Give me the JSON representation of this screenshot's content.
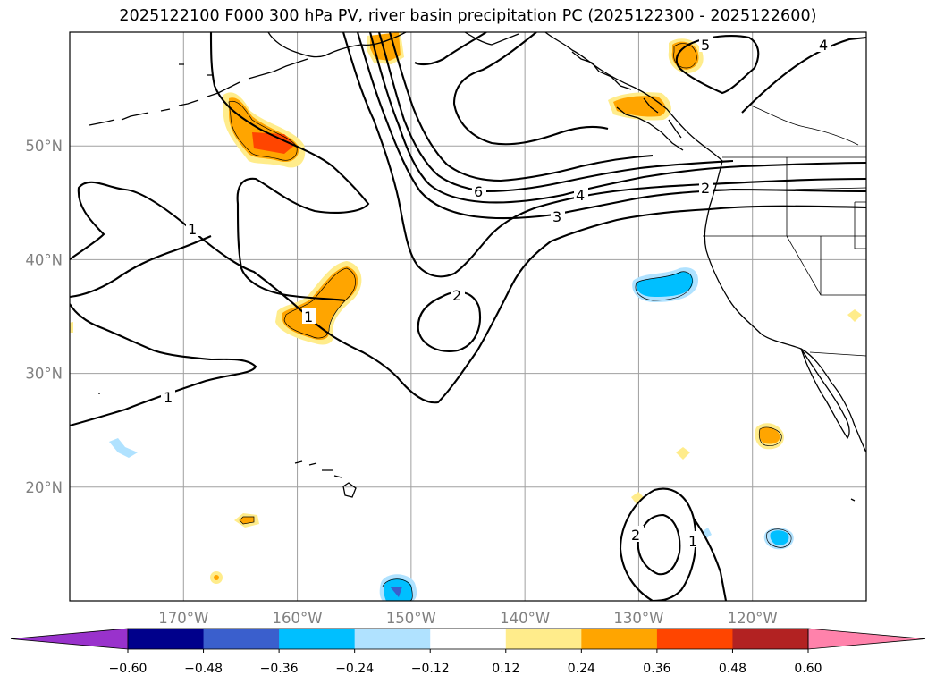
{
  "title": "2025122100 F000 300 hPa PV, river basin precipitation PC (2025122300 - 2025122600)",
  "map": {
    "projection": "PlateCarree",
    "lon_range": [
      -180,
      -110
    ],
    "lat_range": [
      10,
      60
    ],
    "lon_ticks": [
      {
        "value": -170,
        "label": "170°W"
      },
      {
        "value": -160,
        "label": "160°W"
      },
      {
        "value": -150,
        "label": "150°W"
      },
      {
        "value": -140,
        "label": "140°W"
      },
      {
        "value": -130,
        "label": "130°W"
      },
      {
        "value": -120,
        "label": "120°W"
      }
    ],
    "lat_ticks": [
      {
        "value": 20,
        "label": "20°N"
      },
      {
        "value": 30,
        "label": "30°N"
      },
      {
        "value": 40,
        "label": "40°N"
      },
      {
        "value": 50,
        "label": "50°N"
      }
    ],
    "gridlines": true,
    "gridline_color": "#a0a0a0",
    "coastline_color": "#000000"
  },
  "pv_contour_labels": [
    "1",
    "1",
    "1",
    "1",
    "2",
    "2",
    "2",
    "3",
    "4",
    "4",
    "5",
    "6"
  ],
  "colorbar": {
    "orientation": "horizontal",
    "extend": "both",
    "tick_labels": [
      "−0.60",
      "−0.48",
      "−0.36",
      "−0.24",
      "−0.12",
      "0.12",
      "0.24",
      "0.36",
      "0.48",
      "0.60"
    ],
    "bounds": [
      -0.6,
      -0.48,
      -0.36,
      -0.24,
      -0.12,
      0.12,
      0.24,
      0.36,
      0.48,
      0.6
    ],
    "colors": {
      "under": "#9932cc",
      "bins": [
        "#00008b",
        "#3a5fcd",
        "#00bfff",
        "#b0e2ff",
        "#ffffff",
        "#ffec8b",
        "#ffa500",
        "#ff4500",
        "#b22222"
      ],
      "over": "#ff82ab"
    }
  },
  "chart_data": {
    "type": "contour-map",
    "title": "2025122100 F000 300 hPa PV, river basin precipitation PC (2025122300 - 2025122600)",
    "field_lines": "300 hPa potential vorticity (PVU), black contours at 1, 2, 3, 4, 5, 6",
    "field_filled": "river basin precipitation principal component, shaded by colorbar bins",
    "pv_levels": [
      1,
      2,
      3,
      4,
      5,
      6
    ],
    "shading_bounds": [
      -0.6,
      -0.48,
      -0.36,
      -0.24,
      -0.12,
      0.12,
      0.24,
      0.36,
      0.48,
      0.6
    ],
    "notable_features": [
      {
        "lon": -160,
        "lat": 50,
        "sign": "positive",
        "peak": 0.4
      },
      {
        "lon": -158,
        "lat": 36,
        "sign": "positive",
        "peak": 0.3
      },
      {
        "lon": -150,
        "lat": 58,
        "sign": "positive",
        "peak": 0.3
      },
      {
        "lon": -127,
        "lat": 58,
        "sign": "positive",
        "peak": 0.3
      },
      {
        "lon": -131,
        "lat": 53,
        "sign": "positive",
        "peak": 0.3
      },
      {
        "lon": -119,
        "lat": 24.7,
        "sign": "positive",
        "peak": 0.3
      },
      {
        "lon": -128,
        "lat": 37.7,
        "sign": "negative",
        "peak": -0.3
      },
      {
        "lon": -117.7,
        "lat": 15.7,
        "sign": "negative",
        "peak": -0.3
      },
      {
        "lon": -150.5,
        "lat": 10.8,
        "sign": "negative",
        "peak": -0.45
      }
    ]
  }
}
